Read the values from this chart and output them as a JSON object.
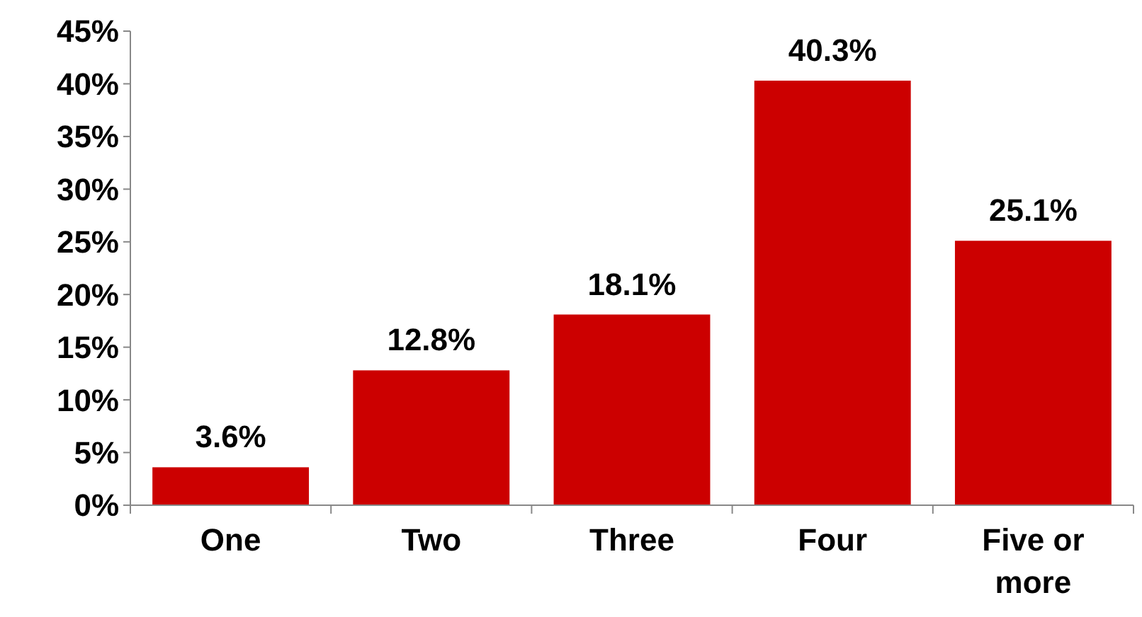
{
  "chart_data": {
    "type": "bar",
    "categories": [
      "One",
      "Two",
      "Three",
      "Four",
      "Five or more"
    ],
    "values": [
      3.6,
      12.8,
      18.1,
      40.3,
      25.1
    ],
    "value_labels": [
      "3.6%",
      "12.8%",
      "18.1%",
      "40.3%",
      "25.1%"
    ],
    "color": "#cc0000",
    "ylim": [
      0,
      45
    ],
    "yticks": [
      {
        "value": 0,
        "label": "0%"
      },
      {
        "value": 5,
        "label": "5%"
      },
      {
        "value": 10,
        "label": "10%"
      },
      {
        "value": 15,
        "label": "15%"
      },
      {
        "value": 20,
        "label": "20%"
      },
      {
        "value": 25,
        "label": "25%"
      },
      {
        "value": 30,
        "label": "30%"
      },
      {
        "value": 35,
        "label": "35%"
      },
      {
        "value": 40,
        "label": "40%"
      },
      {
        "value": 45,
        "label": "45%"
      }
    ],
    "grid": false
  }
}
